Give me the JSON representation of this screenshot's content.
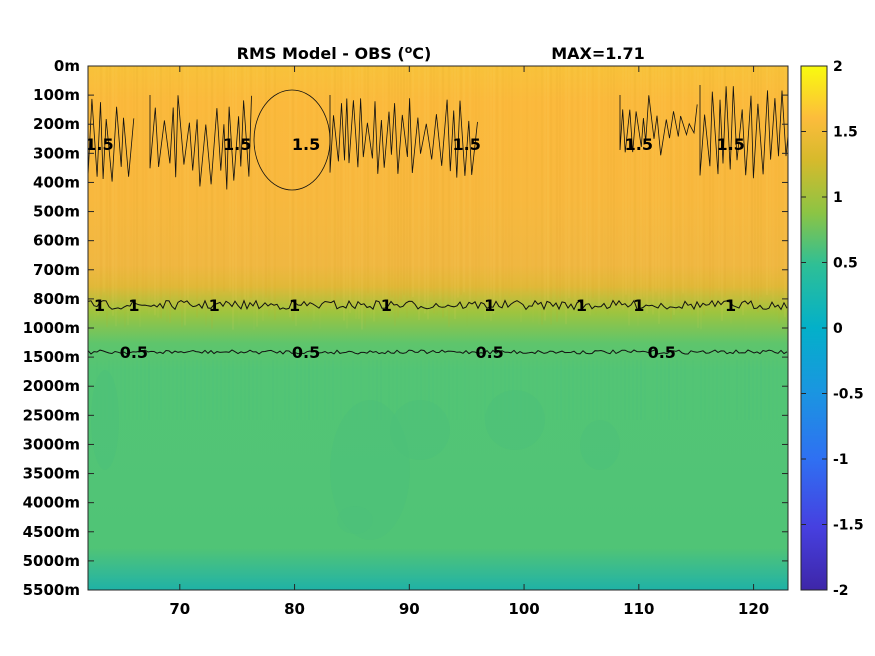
{
  "chart_data": {
    "type": "heatmap",
    "title": "RMS Model - OBS (",
    "title_unit_sup": "o",
    "title_unit_end": "C)",
    "max_label": "MAX=1.71",
    "x_ticks": [
      "70",
      "80",
      "90",
      "100",
      "110",
      "120"
    ],
    "x_tick_values": [
      70,
      80,
      90,
      100,
      110,
      120
    ],
    "xlim": [
      62,
      123
    ],
    "y_ticks": [
      "0m",
      "100m",
      "200m",
      "300m",
      "400m",
      "500m",
      "600m",
      "700m",
      "800m",
      "1000m",
      "1500m",
      "2000m",
      "2500m",
      "3000m",
      "3500m",
      "4000m",
      "4500m",
      "5000m",
      "5500m"
    ],
    "colorbar": {
      "ticks": [
        "2",
        "1.5",
        "1",
        "0.5",
        "0",
        "-0.5",
        "-1",
        "-1.5",
        "-2"
      ],
      "tick_values": [
        2,
        1.5,
        1,
        0.5,
        0,
        -0.5,
        -1,
        -1.5,
        -2
      ],
      "range": [
        -2,
        2
      ],
      "colormap": "parula"
    },
    "depth_profile_rms": [
      1.55,
      1.6,
      1.6,
      1.58,
      1.5,
      1.45,
      1.38,
      1.3,
      1.05,
      0.75,
      0.48,
      0.42,
      0.42,
      0.42,
      0.42,
      0.42,
      0.42,
      0.38,
      0.3
    ],
    "contour_labels": [
      {
        "value": "1.5",
        "x": [
          63,
          75,
          81,
          95,
          110,
          118
        ]
      },
      {
        "value": "1",
        "x": [
          63,
          66,
          73,
          80,
          88,
          97,
          105,
          110,
          118
        ]
      },
      {
        "value": "0.5",
        "x": [
          66,
          81,
          97,
          112
        ]
      }
    ],
    "colors": {
      "yellow": "#f9fb0e",
      "orange": "#fbb93c",
      "green": "#52c574",
      "teal": "#1fb2a5",
      "blue": "#2b6bf0",
      "navy": "#3e26a8"
    }
  }
}
